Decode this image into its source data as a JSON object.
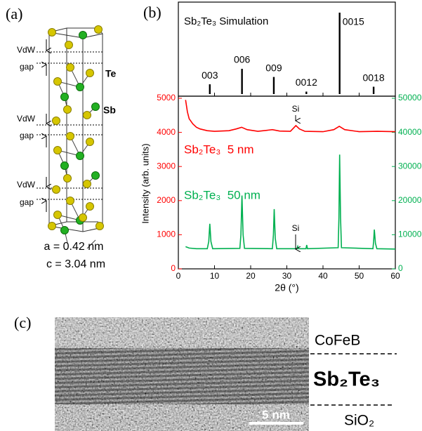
{
  "panel_labels": [
    "(a)",
    "(b)",
    "(c)"
  ],
  "structure": {
    "vdw_gaps": [
      {
        "line1": "VdW",
        "line2": "gap"
      },
      {
        "line1": "VdW",
        "line2": "gap"
      },
      {
        "line1": "VdW",
        "line2": "gap"
      }
    ],
    "atom_labels": [
      "Te",
      "Sb"
    ],
    "lattice": [
      "a = 0.42 nm",
      "c = 3.04 nm"
    ]
  },
  "chart_data": [
    {
      "type": "bar",
      "title": "Sb₂Te₃ Simulation",
      "color": "#000000",
      "x": [
        8.7,
        17.6,
        26.4,
        35.4,
        44.6,
        54.0
      ],
      "values": [
        12,
        31,
        21,
        3,
        100,
        9
      ],
      "labels": [
        "003",
        "006",
        "009",
        "0012",
        "0015",
        "0018"
      ],
      "xlim": [
        0,
        60
      ],
      "ylim": [
        0,
        100
      ]
    },
    {
      "type": "line",
      "ylabel": "Intensity (arb. units)",
      "xlabel": "2θ (°)",
      "xlim": [
        0,
        60
      ],
      "xticks": [
        0,
        10,
        20,
        30,
        40,
        50,
        60
      ],
      "ylim": [
        0,
        5000
      ],
      "yticks": [
        0,
        1000,
        2000,
        3000,
        4000,
        5000
      ],
      "ycolor": "#ff0000",
      "y2lim": [
        0,
        50000
      ],
      "y2ticks": [
        0,
        10000,
        20000,
        30000,
        40000,
        50000
      ],
      "y2color": "#00b050",
      "annotations": [
        "Si",
        "Si"
      ],
      "series": [
        {
          "name": "Sb₂Te₃  5 nm",
          "color": "#ff0000",
          "x": [
            2,
            2.5,
            3,
            4,
            5,
            6,
            8,
            10,
            14,
            16,
            17.5,
            19,
            22,
            26,
            28,
            31,
            32.5,
            33.5,
            35,
            40,
            43,
            44.5,
            46,
            50,
            55,
            60
          ],
          "values": [
            4950,
            4600,
            4400,
            4250,
            4150,
            4100,
            4050,
            4030,
            4050,
            4100,
            4150,
            4080,
            4030,
            4080,
            4040,
            4030,
            4200,
            4100,
            4030,
            4020,
            4080,
            4180,
            4080,
            4020,
            4030,
            4020
          ]
        },
        {
          "name": "Sb₂Te₃  50 nm",
          "color": "#00b050",
          "axis": "y2",
          "x": [
            2,
            3,
            5,
            8,
            8.4,
            8.7,
            9.0,
            9.5,
            17,
            17.3,
            17.6,
            17.9,
            18.3,
            26,
            26.3,
            26.5,
            26.8,
            27.2,
            32.8,
            33,
            33.2,
            35.3,
            35.5,
            35.7,
            44.2,
            44.4,
            44.6,
            44.85,
            45.1,
            53.8,
            54.0,
            54.2,
            54.5,
            54.9,
            60
          ],
          "values": [
            6500,
            6100,
            5900,
            5900,
            8000,
            13200,
            8000,
            5900,
            6000,
            10000,
            21500,
            10000,
            6000,
            5900,
            10000,
            17500,
            9000,
            5900,
            5900,
            6600,
            5900,
            5900,
            7000,
            5900,
            6200,
            15000,
            33500,
            15000,
            6200,
            5900,
            8000,
            11500,
            7500,
            5900,
            5800
          ]
        }
      ]
    }
  ],
  "tem": {
    "layers": [
      "CoFeB",
      "Sb₂Te₃",
      "SiO₂"
    ],
    "scale_bar": "5 nm"
  }
}
